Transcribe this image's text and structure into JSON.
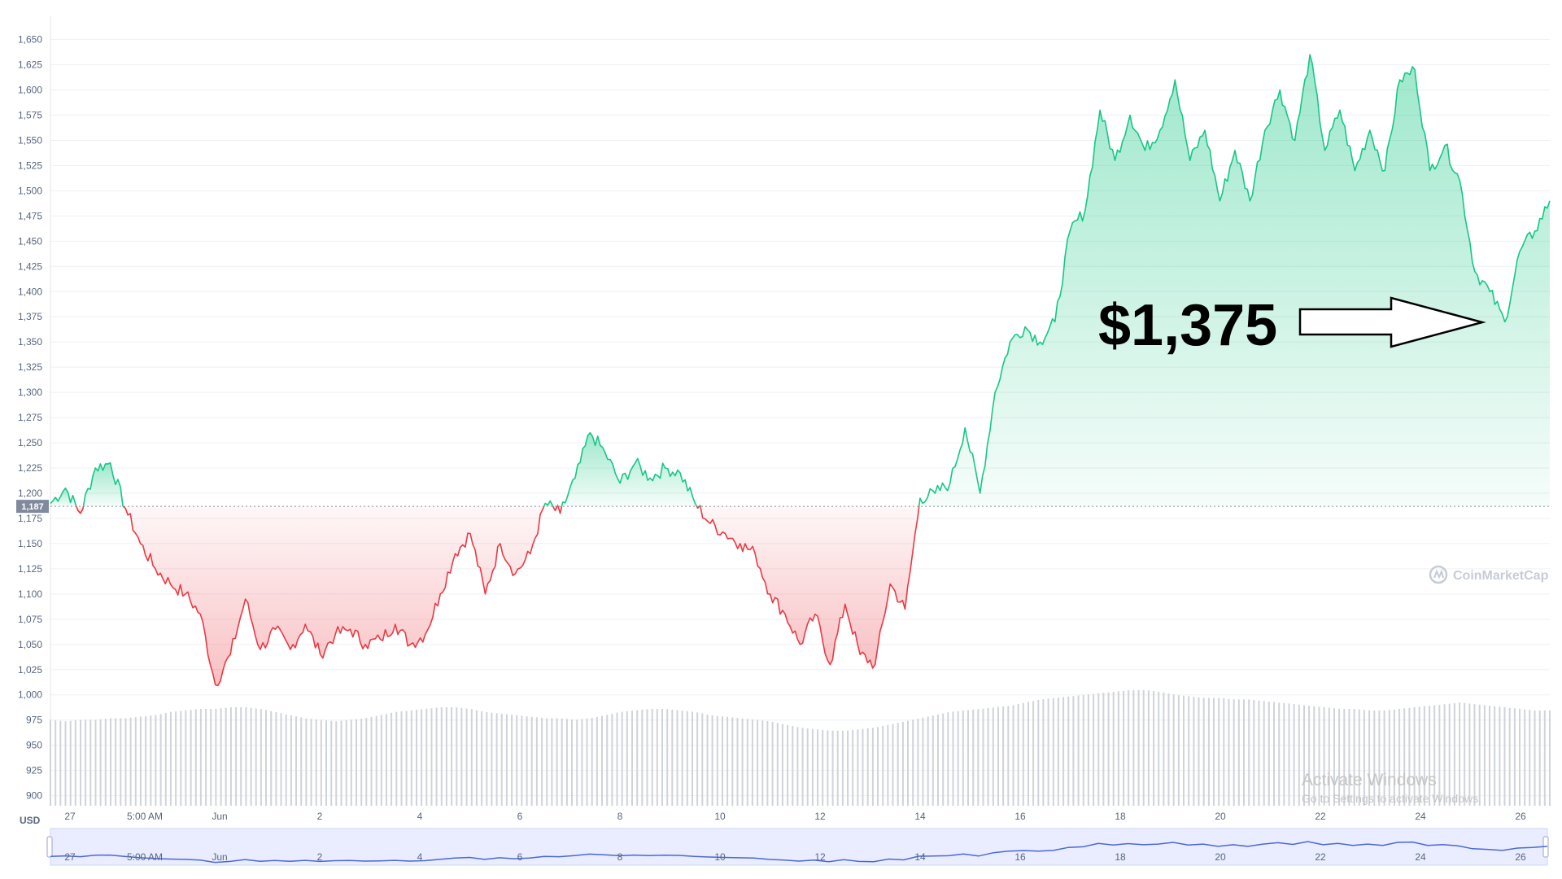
{
  "chart_data": {
    "type": "area",
    "ylabel": "USD",
    "ylim": [
      890,
      1665
    ],
    "yticks": [
      "1,650",
      "1,625",
      "1,600",
      "1,575",
      "1,550",
      "1,525",
      "1,500",
      "1,475",
      "1,450",
      "1,425",
      "1,400",
      "1,375",
      "1,350",
      "1,325",
      "1,300",
      "1,275",
      "1,250",
      "1,225",
      "1,200",
      "1,175",
      "1,150",
      "1,125",
      "1,100",
      "1,075",
      "1,050",
      "1,025",
      "1,000",
      "975",
      "950",
      "925",
      "900"
    ],
    "xticks": [
      "27",
      "5:00 AM",
      "Jun",
      "2",
      "4",
      "6",
      "8",
      "10",
      "12",
      "14",
      "16",
      "18",
      "20",
      "22",
      "24",
      "26"
    ],
    "reference_price": 1187,
    "reference_label": "1,187",
    "series": [
      {
        "values": [
          1190,
          1205,
          1180,
          1225,
          1230,
          1185,
          1150,
          1125,
          1110,
          1100,
          1080,
          1010,
          1040,
          1095,
          1045,
          1065,
          1045,
          1070,
          1040,
          1060,
          1065,
          1050,
          1055,
          1070,
          1050,
          1060,
          1100,
          1140,
          1160,
          1100,
          1150,
          1120,
          1140,
          1190,
          1180,
          1215,
          1260,
          1240,
          1210,
          1230,
          1215,
          1225,
          1220,
          1190,
          1170,
          1160,
          1150,
          1140,
          1100,
          1080,
          1050,
          1080,
          1030,
          1090,
          1040,
          1030,
          1110,
          1085,
          1195,
          1200,
          1210,
          1265,
          1200,
          1300,
          1350,
          1365,
          1350,
          1370,
          1460,
          1480,
          1580,
          1530,
          1575,
          1540,
          1560,
          1610,
          1530,
          1560,
          1490,
          1540,
          1490,
          1560,
          1600,
          1550,
          1635,
          1540,
          1580,
          1520,
          1560,
          1520,
          1610,
          1620,
          1520,
          1545,
          1510,
          1420,
          1400,
          1370,
          1440,
          1460,
          1490
        ],
        "color_up": "#16c784",
        "color_down": "#ea3943"
      }
    ],
    "volume_series": [
      55,
      54,
      55,
      55,
      56,
      56,
      57,
      58,
      60,
      61,
      62,
      62,
      63,
      63,
      62,
      60,
      58,
      56,
      55,
      54,
      55,
      56,
      58,
      60,
      61,
      62,
      63,
      63,
      62,
      60,
      59,
      58,
      57,
      56,
      56,
      55,
      56,
      58,
      60,
      61,
      62,
      62,
      61,
      60,
      58,
      57,
      56,
      55,
      54,
      52,
      50,
      49,
      48,
      48,
      49,
      50,
      52,
      54,
      56,
      58,
      60,
      61,
      62,
      63,
      64,
      66,
      68,
      69,
      70,
      71,
      72,
      73,
      74,
      74,
      73,
      71,
      70,
      69,
      69,
      68,
      68,
      67,
      66,
      65,
      64,
      63,
      62,
      62,
      61,
      61,
      62,
      63,
      64,
      65,
      66,
      65,
      64,
      63,
      62,
      61,
      61
    ],
    "annotations": [
      {
        "text": "$1,375"
      }
    ]
  },
  "watermark": {
    "text": "CoinMarketCap"
  },
  "os_overlay": {
    "title": "Activate Windows",
    "subtitle": "Go to Settings to activate Windows."
  }
}
